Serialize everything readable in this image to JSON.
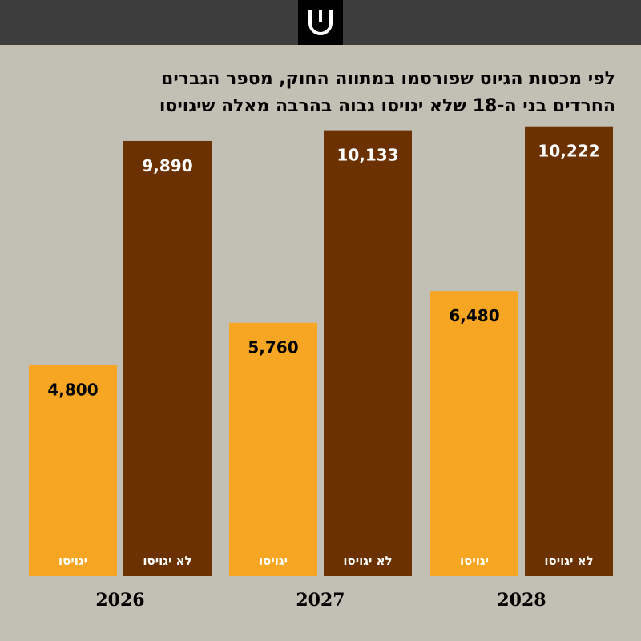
{
  "header": {
    "logo_icon": "publisher-logo-icon",
    "bar_color": "#3d3d3d",
    "logo_bg": "#000000"
  },
  "title_lines": [
    "לפי מכסות הגיוס שפורסמו במתווה החוק, מספר הגברים",
    "החרדים בני ה-18 שלא יגויסו גבוה בהרבה מאלה שיגויסו"
  ],
  "chart_data": {
    "type": "bar",
    "categories": [
      "2026",
      "2027",
      "2028"
    ],
    "series": [
      {
        "name": "יגויסו",
        "values": [
          4800,
          5760,
          6480
        ],
        "color": "#f6a623",
        "labels": [
          "4,800",
          "5,760",
          "6,480"
        ]
      },
      {
        "name": "לא יגויסו",
        "values": [
          9890,
          10133,
          10222
        ],
        "color": "#6b3100",
        "labels": [
          "9,890",
          "10,133",
          "10,222"
        ]
      }
    ],
    "legend": "none",
    "grid": false,
    "ylim": [
      0,
      11000
    ]
  }
}
